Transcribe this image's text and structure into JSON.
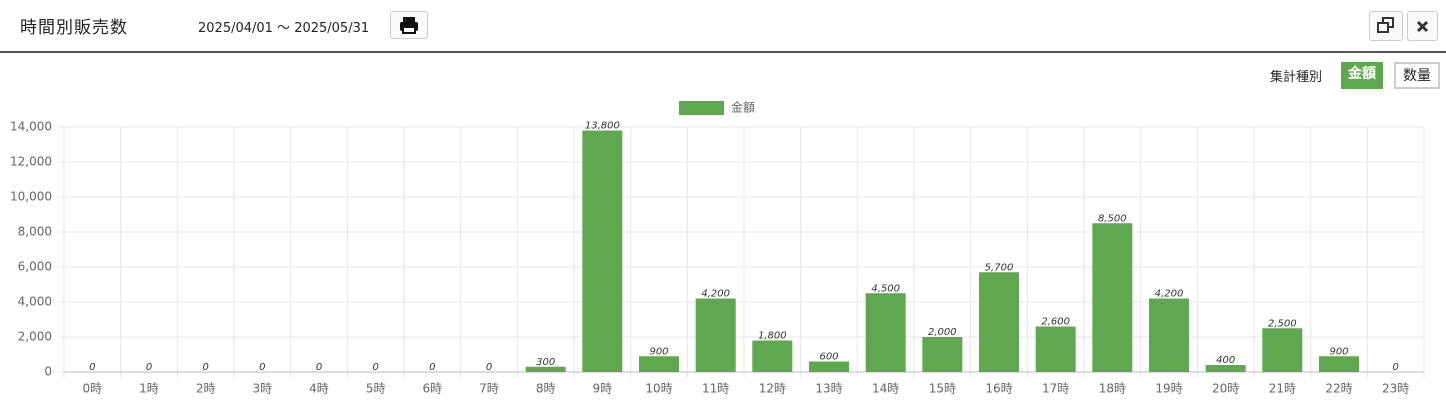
{
  "header": {
    "title": "時間別販売数",
    "date_range": "2025/04/01 ～ 2025/05/31"
  },
  "toolbar": {
    "label": "集計種別",
    "buttons": [
      "金額",
      "数量"
    ]
  },
  "chart_data": {
    "type": "bar",
    "categories": [
      "0時",
      "1時",
      "2時",
      "3時",
      "4時",
      "5時",
      "6時",
      "7時",
      "8時",
      "9時",
      "10時",
      "11時",
      "12時",
      "13時",
      "14時",
      "15時",
      "16時",
      "17時",
      "18時",
      "19時",
      "20時",
      "21時",
      "22時",
      "23時"
    ],
    "series": [
      {
        "name": "金額",
        "color": "#60a84f",
        "values": [
          0,
          0,
          0,
          0,
          0,
          0,
          0,
          0,
          300,
          13800,
          900,
          4200,
          1800,
          600,
          4500,
          2000,
          5700,
          2600,
          8500,
          4200,
          400,
          2500,
          900,
          0
        ],
        "value_labels": [
          "0",
          "0",
          "0",
          "0",
          "0",
          "0",
          "0",
          "0",
          "300",
          "13,800",
          "900",
          "4,200",
          "1,800",
          "600",
          "4,500",
          "2,000",
          "5,700",
          "2,600",
          "8,500",
          "4,200",
          "400",
          "2,500",
          "900",
          "0"
        ]
      }
    ],
    "ylim": [
      0,
      14000
    ],
    "yticks": [
      0,
      {
        "value": 2000,
        "label": "2,000"
      },
      {
        "value": 4000,
        "label": "4,000"
      },
      {
        "value": 6000,
        "label": "6,000"
      },
      {
        "value": 8000,
        "label": "8,000"
      },
      {
        "value": 10000,
        "label": "10,000"
      },
      {
        "value": 12000,
        "label": "12,000"
      },
      {
        "value": 14000,
        "label": "14,000"
      }
    ],
    "grid": true,
    "legend": "top"
  }
}
